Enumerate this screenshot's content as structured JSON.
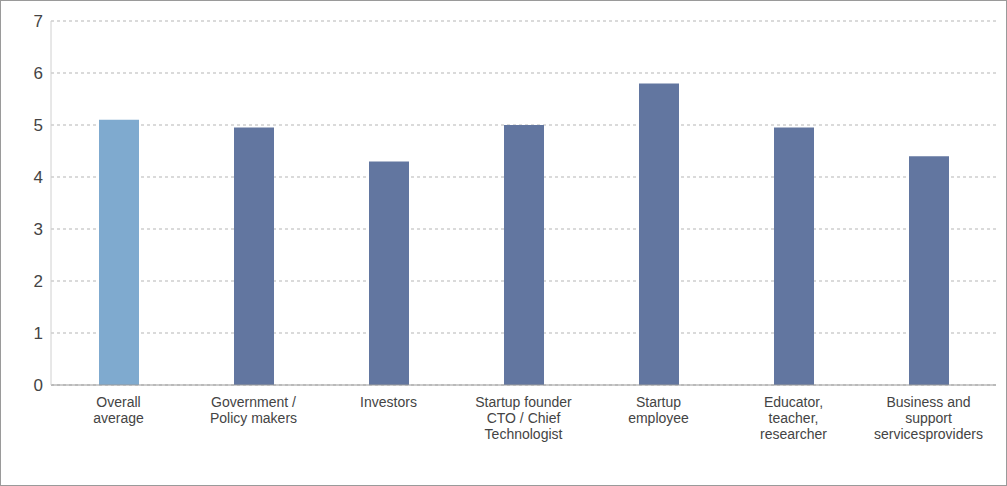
{
  "chart_data": {
    "type": "bar",
    "categories": [
      "Overall\naverage",
      "Government /\nPolicy makers",
      "Investors",
      "Startup founder\nCTO / Chief\nTechnologist",
      "Startup\nemployee",
      "Educator,\nteacher,\nresearcher",
      "Business and\nsupport\nservicesproviders"
    ],
    "values": [
      5.1,
      4.95,
      4.3,
      5.0,
      5.8,
      4.95,
      4.4
    ],
    "colors": [
      "#7faacf",
      "#6276a0",
      "#6276a0",
      "#6276a0",
      "#6276a0",
      "#6276a0",
      "#6276a0"
    ],
    "ylim": [
      0,
      7
    ],
    "yticks": [
      0,
      1,
      2,
      3,
      4,
      5,
      6,
      7
    ],
    "grid": true
  }
}
